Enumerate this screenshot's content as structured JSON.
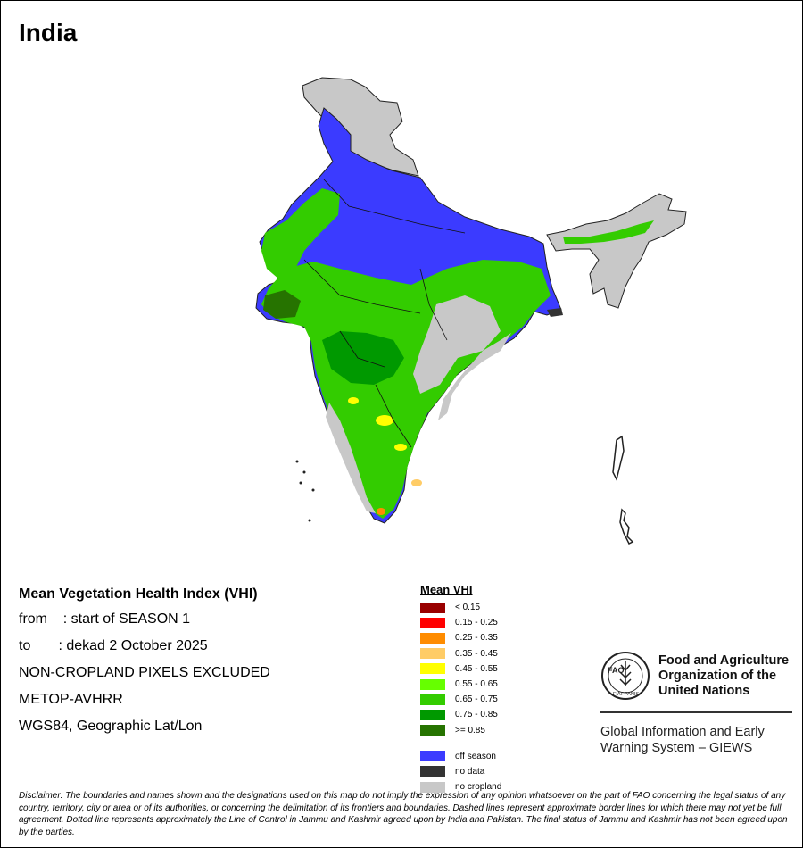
{
  "map": {
    "title": "India"
  },
  "info": {
    "heading": "Mean Vegetation Health Index (VHI)",
    "from_line": "from    : start of SEASON 1",
    "to_line": "to       : dekad 2 October 2025",
    "exclusion": "NON-CROPLAND PIXELS EXCLUDED",
    "sensor": "METOP-AVHRR",
    "projection": "WGS84, Geographic Lat/Lon"
  },
  "legend": {
    "title": "Mean VHI",
    "classes": [
      {
        "label": "< 0.15",
        "color": "#990000"
      },
      {
        "label": "0.15 - 0.25",
        "color": "#ff0000"
      },
      {
        "label": "0.25 - 0.35",
        "color": "#ff8c00"
      },
      {
        "label": "0.35 - 0.45",
        "color": "#ffcc66"
      },
      {
        "label": "0.45 - 0.55",
        "color": "#ffff00"
      },
      {
        "label": "0.55 - 0.65",
        "color": "#66ff00"
      },
      {
        "label": "0.65 - 0.75",
        "color": "#33cc00"
      },
      {
        "label": "0.75 - 0.85",
        "color": "#009900"
      },
      {
        "label": ">= 0.85",
        "color": "#267300"
      }
    ],
    "extra": [
      {
        "label": "off season",
        "color": "#3b3bff"
      },
      {
        "label": "no data",
        "color": "#333333"
      },
      {
        "label": "no cropland",
        "color": "#c8c8c8"
      }
    ]
  },
  "organization": {
    "logo_text": "FAO",
    "logo_motto": "FIAT PANIS",
    "name_line1": "Food and Agriculture",
    "name_line2": "Organization of the",
    "name_line3": "United Nations",
    "giews_line1": "Global Information and Early",
    "giews_line2": "Warning System – GIEWS"
  },
  "disclaimer": "Disclaimer: The boundaries and names shown and the designations used on this map do not imply the expression of any opinion whatsoever on the part of FAO concerning the legal status of any country, territory, city or area or of its authorities, or concerning the delimitation of its frontiers and boundaries. Dashed lines represent approximate border lines for which there may not yet be full agreement. Dotted line represents approximately the Line of Control in Jammu and Kashmir agreed upon by India and Pakistan. The final status of Jammu and Kashmir has not been agreed upon by the parties."
}
